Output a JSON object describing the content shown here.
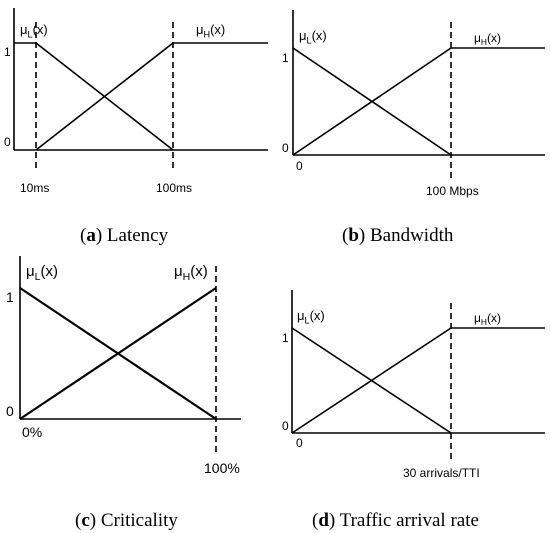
{
  "panels": {
    "a": {
      "mu_low": "μL(x)",
      "mu_high": "μH(x)",
      "y_one": "1",
      "y_zero": "0",
      "tick_low": "10ms",
      "tick_high": "100ms",
      "caption_letter": "(a)",
      "caption_text": "Latency"
    },
    "b": {
      "mu_low": "μL(x)",
      "mu_high": "μH(x)",
      "y_one": "1",
      "y_zero": "0",
      "x_zero": "0",
      "tick_high": "100 Mbps",
      "caption_letter": "(b)",
      "caption_text": "Bandwidth"
    },
    "c": {
      "mu_low": "μL(x)",
      "mu_high": "μH(x)",
      "y_one": "1",
      "y_zero": "0",
      "tick_low": "0%",
      "tick_high": "100%",
      "caption_letter": "(c)",
      "caption_text": "Criticality"
    },
    "d": {
      "mu_low": "μL(x)",
      "mu_high": "μH(x)",
      "y_one": "1",
      "y_zero": "0",
      "x_zero": "0",
      "tick_high": "30 arrivals/TTI",
      "caption_letter": "(d)",
      "caption_text": "Traffic arrival rate"
    }
  }
}
